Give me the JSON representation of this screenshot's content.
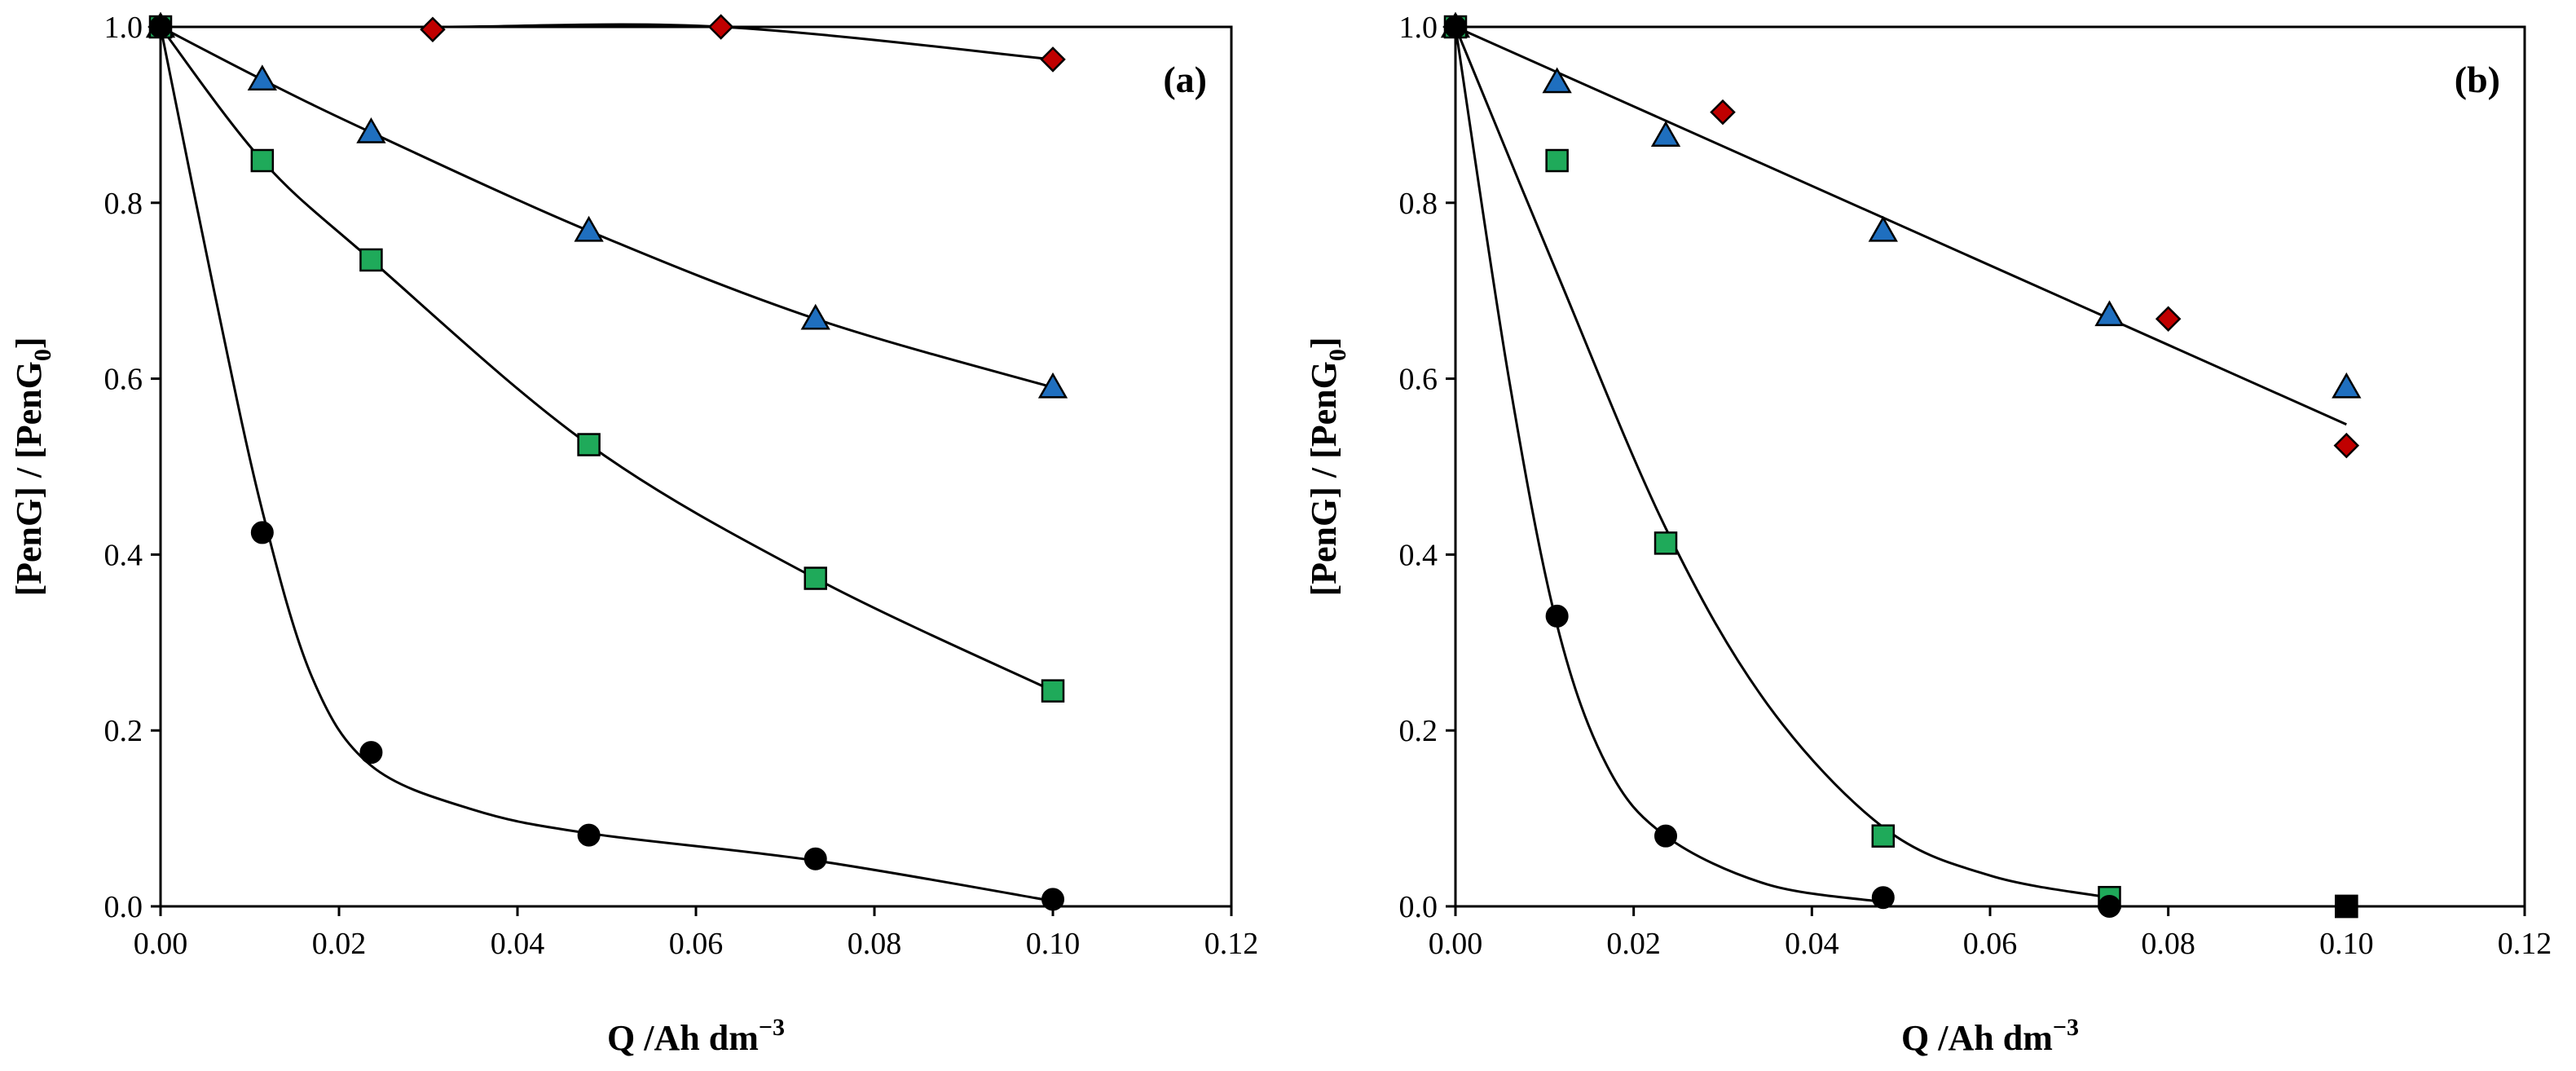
{
  "chart_data": [
    {
      "type": "scatter",
      "panel_label": "(a)",
      "xlabel": "Q /Ah dm",
      "xlabel_sup": "−3",
      "ylabel_parts": [
        "[PenG] / [PenG",
        "0",
        "]"
      ],
      "xlim": [
        0,
        0.12
      ],
      "ylim": [
        0,
        1.0
      ],
      "x_ticks": [
        "0.00",
        "0.02",
        "0.04",
        "0.06",
        "0.08",
        "0.10",
        "0.12"
      ],
      "y_ticks": [
        "0.0",
        "0.2",
        "0.4",
        "0.6",
        "0.8",
        "1.0"
      ],
      "grid": false,
      "series": [
        {
          "name": "diamond",
          "marker": "diamond",
          "color": "#c00000",
          "x": [
            0.0,
            0.0305,
            0.0628,
            0.1
          ],
          "y": [
            1.0,
            0.997,
            1.0,
            0.963
          ],
          "fit": {
            "x": [
              0.0,
              0.0305,
              0.0628,
              0.1
            ],
            "y": [
              1.0,
              1.0,
              1.0,
              0.963
            ]
          }
        },
        {
          "name": "triangle",
          "marker": "triangle",
          "color": "#1f6fbf",
          "x": [
            0.0,
            0.0114,
            0.0236,
            0.048,
            0.0734,
            0.1
          ],
          "y": [
            1.0,
            0.94,
            0.88,
            0.768,
            0.668,
            0.59
          ],
          "fit": {
            "x": [
              0.0,
              0.0114,
              0.0236,
              0.048,
              0.0734,
              0.1
            ],
            "y": [
              1.0,
              0.94,
              0.88,
              0.768,
              0.668,
              0.59
            ]
          }
        },
        {
          "name": "square",
          "marker": "square",
          "color": "#1faa5a",
          "x": [
            0.0,
            0.0114,
            0.0236,
            0.048,
            0.0734,
            0.1
          ],
          "y": [
            1.0,
            0.848,
            0.735,
            0.525,
            0.373,
            0.245
          ],
          "fit": {
            "x": [
              0.0,
              0.0114,
              0.0236,
              0.048,
              0.0734,
              0.1
            ],
            "y": [
              1.0,
              0.848,
              0.735,
              0.525,
              0.373,
              0.245
            ]
          }
        },
        {
          "name": "circle",
          "marker": "circle",
          "color": "#000000",
          "x": [
            0.0,
            0.0114,
            0.0236,
            0.048,
            0.0734,
            0.1
          ],
          "y": [
            1.0,
            0.425,
            0.175,
            0.081,
            0.054,
            0.008
          ],
          "fit": {
            "x": [
              0.0,
              0.006,
              0.0114,
              0.017,
              0.0236,
              0.035,
              0.048,
              0.0734,
              0.1
            ],
            "y": [
              1.0,
              0.7,
              0.45,
              0.26,
              0.16,
              0.11,
              0.083,
              0.052,
              0.006
            ]
          }
        }
      ]
    },
    {
      "type": "scatter",
      "panel_label": "(b)",
      "xlabel": "Q /Ah dm",
      "xlabel_sup": "−3",
      "ylabel_parts": [
        "[PenG] / [PenG",
        "0",
        "]"
      ],
      "xlim": [
        0,
        0.12
      ],
      "ylim": [
        0,
        1.0
      ],
      "x_ticks": [
        "0.00",
        "0.02",
        "0.04",
        "0.06",
        "0.08",
        "0.10",
        "0.12"
      ],
      "y_ticks": [
        "0.0",
        "0.2",
        "0.4",
        "0.6",
        "0.8",
        "1.0"
      ],
      "grid": false,
      "series": [
        {
          "name": "diamond",
          "marker": "diamond",
          "color": "#c00000",
          "x": [
            0.0,
            0.03,
            0.08,
            0.1
          ],
          "y": [
            1.0,
            0.903,
            0.668,
            0.524
          ],
          "fit": null
        },
        {
          "name": "triangle",
          "marker": "triangle",
          "color": "#1f6fbf",
          "x": [
            0.0,
            0.0114,
            0.0236,
            0.048,
            0.0734,
            0.1
          ],
          "y": [
            1.0,
            0.937,
            0.876,
            0.768,
            0.672,
            0.59
          ],
          "fit": {
            "x": [
              0.0,
              0.1
            ],
            "y": [
              1.0,
              0.548
            ]
          }
        },
        {
          "name": "square",
          "marker": "square",
          "color": "#1faa5a",
          "x": [
            0.0,
            0.0114,
            0.0236,
            0.048,
            0.0734,
            0.1
          ],
          "y": [
            1.0,
            0.848,
            0.413,
            0.08,
            0.01,
            0.0
          ],
          "fit": {
            "x": [
              0.0,
              0.0114,
              0.0236,
              0.035,
              0.048,
              0.06,
              0.0734
            ],
            "y": [
              1.0,
              0.72,
              0.43,
              0.23,
              0.09,
              0.035,
              0.01
            ]
          }
        },
        {
          "name": "circle",
          "marker": "circle",
          "color": "#000000",
          "x": [
            0.0,
            0.0114,
            0.0236,
            0.048,
            0.0734
          ],
          "y": [
            1.0,
            0.33,
            0.08,
            0.01,
            0.0
          ],
          "fit": {
            "x": [
              0.0,
              0.006,
              0.0114,
              0.017,
              0.0236,
              0.035,
              0.048
            ],
            "y": [
              1.0,
              0.6,
              0.32,
              0.16,
              0.08,
              0.025,
              0.005
            ]
          }
        }
      ],
      "extra_marker": {
        "name": "black-square",
        "marker": "square",
        "color": "#000000",
        "x": 0.1,
        "y": 0.0
      }
    }
  ]
}
